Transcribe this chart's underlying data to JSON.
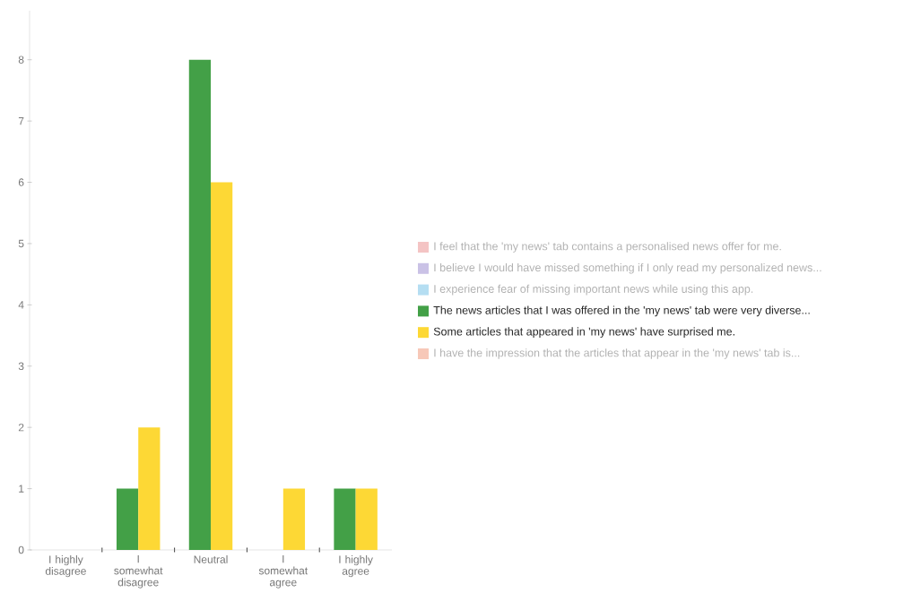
{
  "chart_data": {
    "type": "bar",
    "categories": [
      "I highly disagree",
      "I somewhat disagree",
      "Neutral",
      "I somewhat agree",
      "I highly agree"
    ],
    "series": [
      {
        "name": "I feel that the 'my news' tab contains a personalised news offer for me.",
        "color": "#f4c4c4",
        "values": [
          null,
          null,
          null,
          null,
          null
        ]
      },
      {
        "name": "I believe I would have missed something if I only read my personalized news...",
        "color": "#cac2e6",
        "values": [
          null,
          null,
          null,
          null,
          null
        ]
      },
      {
        "name": "I experience fear of missing important news while using this app.",
        "color": "#b5def2",
        "values": [
          null,
          null,
          null,
          null,
          null
        ]
      },
      {
        "name": "The news articles that I was offered in the 'my news' tab were very diverse...",
        "color": "#43a047",
        "values": [
          0,
          1,
          8,
          0,
          1
        ]
      },
      {
        "name": "Some articles that appeared in 'my news' have surprised me.",
        "color": "#fdd835",
        "values": [
          0,
          2,
          6,
          1,
          1
        ]
      },
      {
        "name": "I have the impression that the articles that appear in the 'my news' tab is...",
        "color": "#f7c8b8",
        "values": [
          null,
          null,
          null,
          null,
          null
        ]
      }
    ],
    "ylim": [
      0,
      8.8
    ],
    "yticks": [
      0,
      1,
      2,
      3,
      4,
      5,
      6,
      7,
      8
    ],
    "grid": false,
    "legend": "right"
  }
}
